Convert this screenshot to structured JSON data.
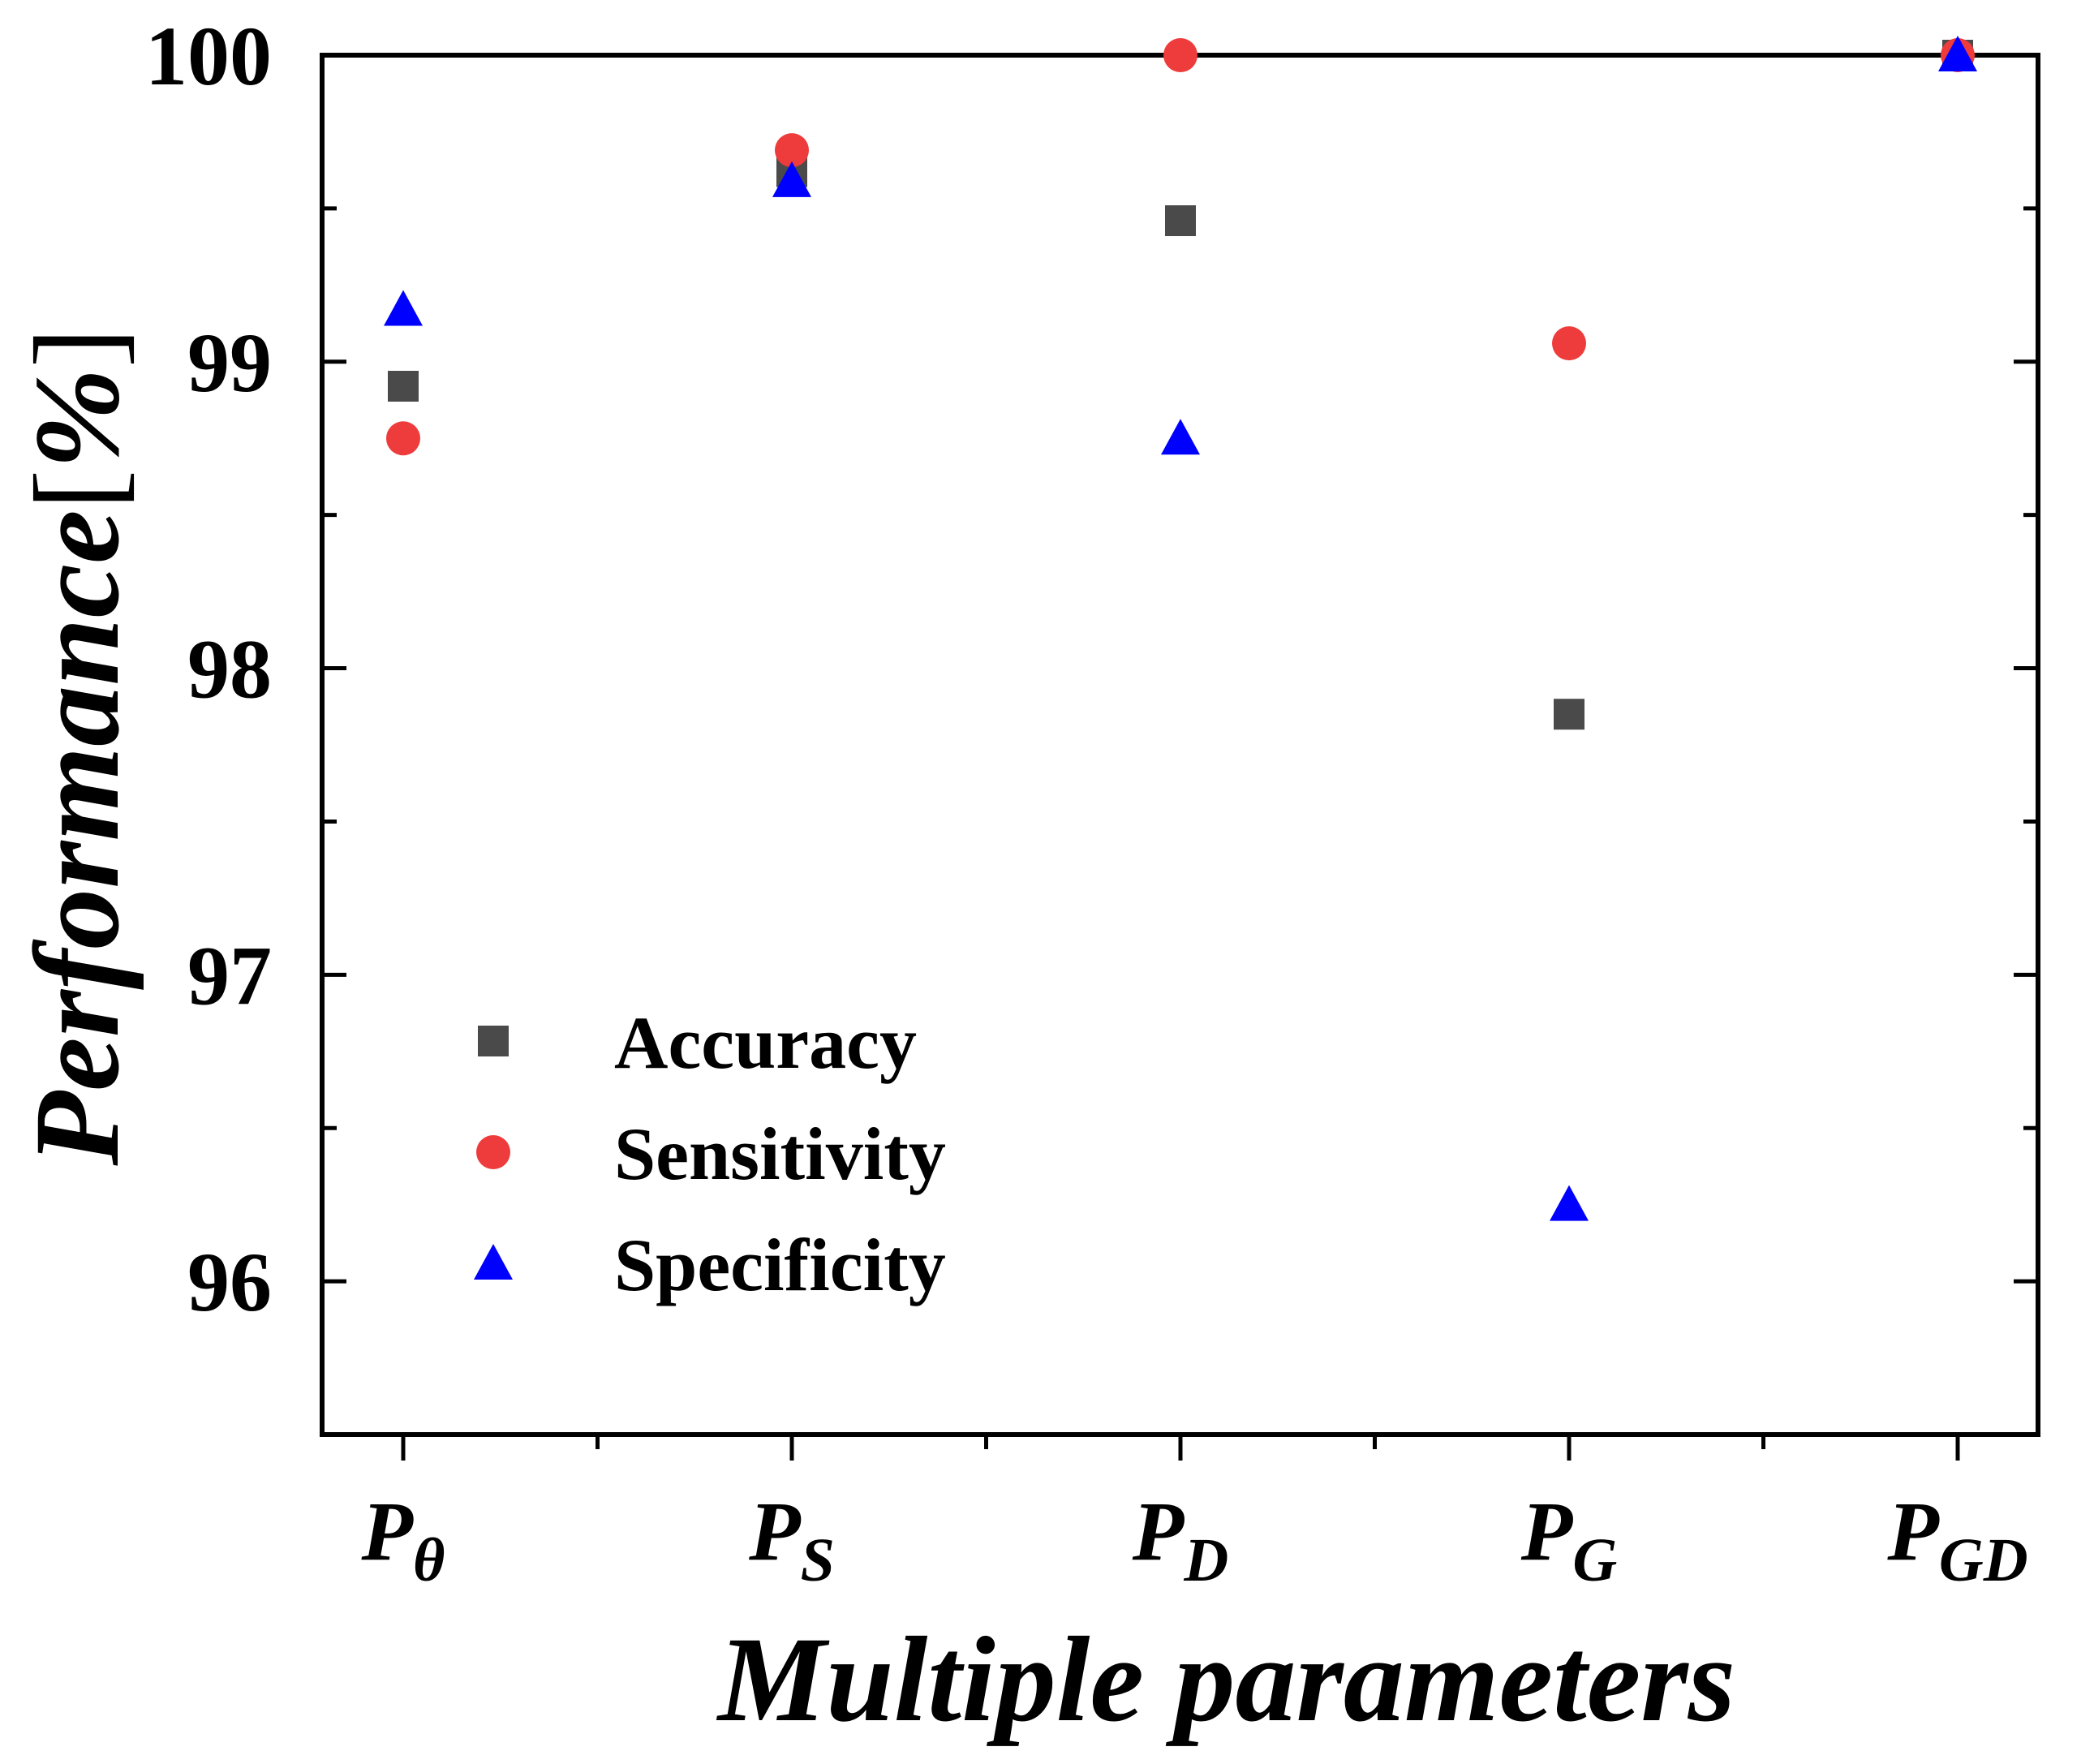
{
  "chart_data": {
    "type": "scatter",
    "title": "",
    "xlabel": "Multiple parameters",
    "ylabel_main": "Performance",
    "ylabel_unit": "%",
    "categories": [
      {
        "base": "P",
        "sub": "θ"
      },
      {
        "base": "P",
        "sub": "S"
      },
      {
        "base": "P",
        "sub": "D"
      },
      {
        "base": "P",
        "sub": "G"
      },
      {
        "base": "P",
        "sub": "GD"
      }
    ],
    "ylim": [
      95.5,
      100
    ],
    "yticks": [
      96,
      97,
      98,
      99,
      100
    ],
    "series": [
      {
        "name": "Accuracy",
        "marker": "square",
        "color": "#4a4a4a",
        "values": [
          98.92,
          99.62,
          99.46,
          97.85,
          100
        ]
      },
      {
        "name": "Sensitivity",
        "marker": "circle",
        "color": "#ee3b3b",
        "values": [
          98.75,
          99.69,
          100,
          99.06,
          100
        ]
      },
      {
        "name": "Specificity",
        "marker": "triangle",
        "color": "#0000ff",
        "values": [
          99.17,
          99.59,
          98.75,
          96.25,
          100
        ]
      }
    ],
    "legend": "center-left",
    "grid": false
  }
}
